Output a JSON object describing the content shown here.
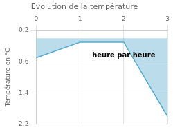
{
  "chart_data": {
    "type": "area",
    "title": "Evolution de la température",
    "ylabel": "Température en °C",
    "x": [
      0,
      1,
      2,
      3
    ],
    "series": [
      {
        "name": "Température",
        "color": "#55aacc",
        "values": [
          -0.5,
          -0.1,
          -0.1,
          -2.0
        ]
      }
    ],
    "xlim": [
      0,
      3
    ],
    "xticks": [
      0,
      1,
      2,
      3
    ],
    "ylim": [
      -2.2,
      0.2
    ],
    "yticks": [
      0.2,
      -0.6,
      -1.4,
      -2.2
    ],
    "grid": true,
    "annotations": [
      {
        "text": "heure par heure",
        "x": 2.0,
        "y": -0.45
      }
    ]
  }
}
